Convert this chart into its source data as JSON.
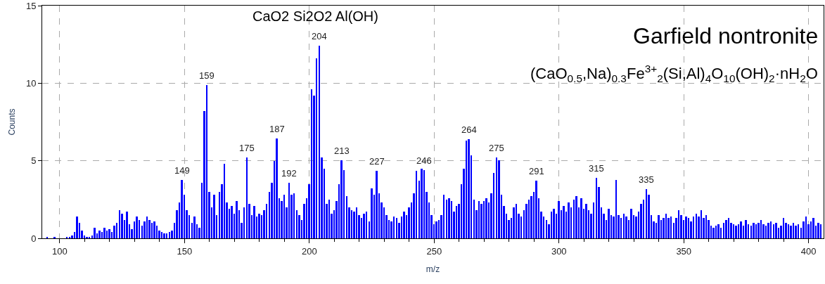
{
  "chart_data": {
    "type": "bar",
    "title": "Garfield nontronite",
    "subtitle": "(CaO$_{0.5}$,Na)$_{0.3}$Fe$^{3+}$$_{2}$(Si,Al)$_{4}$O$_{10}$(OH)$_{2}$·nH$_{2}$O",
    "xlabel": "m/z",
    "ylabel": "Counts",
    "x": [
      95,
      98,
      103,
      104,
      105,
      106,
      107,
      108,
      109,
      110,
      111,
      112,
      113,
      114,
      115,
      116,
      117,
      118,
      119,
      120,
      121,
      122,
      123,
      124,
      125,
      126,
      127,
      128,
      129,
      130,
      131,
      132,
      133,
      134,
      135,
      136,
      137,
      138,
      139,
      140,
      141,
      142,
      143,
      144,
      145,
      146,
      147,
      148,
      149,
      150,
      151,
      152,
      153,
      154,
      155,
      156,
      157,
      158,
      159,
      160,
      161,
      162,
      163,
      164,
      165,
      166,
      167,
      168,
      169,
      170,
      171,
      172,
      173,
      174,
      175,
      176,
      177,
      178,
      179,
      180,
      181,
      182,
      183,
      184,
      185,
      186,
      187,
      188,
      189,
      190,
      191,
      192,
      193,
      194,
      195,
      196,
      197,
      198,
      199,
      200,
      201,
      202,
      203,
      204,
      205,
      206,
      207,
      208,
      209,
      210,
      211,
      212,
      213,
      214,
      215,
      216,
      217,
      218,
      219,
      220,
      221,
      222,
      223,
      224,
      225,
      226,
      227,
      228,
      229,
      230,
      231,
      232,
      233,
      234,
      235,
      236,
      237,
      238,
      239,
      240,
      241,
      242,
      243,
      244,
      245,
      246,
      247,
      248,
      249,
      250,
      251,
      252,
      253,
      254,
      255,
      256,
      257,
      258,
      259,
      260,
      261,
      262,
      263,
      264,
      265,
      266,
      267,
      268,
      269,
      270,
      271,
      272,
      273,
      274,
      275,
      276,
      277,
      278,
      279,
      280,
      281,
      282,
      283,
      284,
      285,
      286,
      287,
      288,
      289,
      290,
      291,
      292,
      293,
      294,
      295,
      296,
      297,
      298,
      299,
      300,
      301,
      302,
      303,
      304,
      305,
      306,
      307,
      308,
      309,
      310,
      311,
      312,
      313,
      314,
      315,
      316,
      317,
      318,
      319,
      320,
      321,
      322,
      323,
      324,
      325,
      326,
      327,
      328,
      329,
      330,
      331,
      332,
      333,
      334,
      335,
      336,
      337,
      338,
      339,
      340,
      341,
      342,
      343,
      344,
      345,
      346,
      347,
      348,
      349,
      350,
      351,
      352,
      353,
      354,
      355,
      356,
      357,
      358,
      359,
      360,
      361,
      362,
      363,
      364,
      365,
      366,
      367,
      368,
      369,
      370,
      371,
      372,
      373,
      374,
      375,
      376,
      377,
      378,
      379,
      380,
      381,
      382,
      383,
      384,
      385,
      386,
      387,
      388,
      389,
      390,
      391,
      392,
      393,
      394,
      395,
      396,
      397,
      398,
      399,
      400,
      401,
      402,
      403,
      404,
      405
    ],
    "series": [
      {
        "color": "#0000ff",
        "values": [
          0.1,
          0.1,
          0.1,
          0.1,
          0.2,
          0.4,
          1.4,
          1.0,
          0.5,
          0.2,
          0.1,
          0.1,
          0.2,
          0.7,
          0.3,
          0.5,
          0.4,
          0.7,
          0.5,
          0.6,
          0.4,
          0.8,
          1.0,
          1.8,
          1.6,
          1.2,
          1.7,
          0.9,
          0.6,
          1.1,
          1.4,
          1.2,
          0.8,
          1.1,
          1.4,
          1.2,
          1.0,
          1.1,
          0.8,
          0.5,
          0.4,
          0.3,
          0.3,
          0.4,
          0.5,
          1.0,
          1.8,
          2.3,
          3.75,
          2.8,
          1.8,
          1.5,
          1.0,
          1.4,
          0.9,
          0.7,
          3.6,
          8.2,
          9.9,
          3.0,
          2.0,
          2.8,
          1.5,
          3.0,
          3.5,
          4.8,
          2.3,
          1.9,
          2.1,
          1.6,
          2.4,
          1.8,
          1.0,
          2.0,
          5.2,
          2.2,
          1.5,
          2.1,
          1.4,
          1.6,
          1.5,
          1.8,
          2.2,
          3.0,
          3.6,
          5.0,
          6.45,
          2.6,
          2.4,
          2.8,
          2.0,
          3.6,
          2.8,
          2.9,
          1.8,
          1.5,
          1.2,
          2.2,
          2.6,
          3.5,
          9.6,
          9.2,
          11.6,
          12.4,
          5.2,
          4.5,
          2.2,
          2.5,
          1.6,
          1.8,
          2.4,
          3.5,
          5.05,
          4.4,
          2.7,
          2.0,
          1.8,
          1.7,
          2.0,
          1.5,
          1.3,
          1.6,
          1.7,
          1.1,
          3.2,
          2.8,
          4.35,
          2.9,
          2.3,
          2.0,
          1.5,
          1.2,
          1.1,
          1.4,
          1.3,
          1.0,
          1.4,
          1.7,
          1.5,
          2.0,
          2.3,
          2.9,
          4.35,
          3.7,
          4.5,
          4.4,
          3.0,
          2.3,
          1.5,
          0.9,
          1.1,
          1.2,
          1.5,
          2.8,
          2.5,
          2.6,
          2.4,
          1.7,
          2.1,
          2.2,
          3.5,
          4.5,
          6.3,
          6.4,
          5.35,
          2.5,
          1.8,
          2.4,
          2.2,
          2.4,
          2.6,
          2.3,
          2.9,
          4.2,
          5.2,
          5.05,
          2.8,
          2.1,
          1.6,
          1.2,
          1.3,
          2.0,
          2.2,
          1.6,
          1.4,
          1.8,
          2.2,
          2.5,
          2.7,
          3.0,
          3.7,
          2.6,
          1.7,
          1.4,
          1.2,
          0.9,
          1.7,
          1.9,
          1.6,
          2.4,
          1.8,
          2.1,
          1.7,
          2.3,
          2.0,
          2.5,
          2.7,
          2.0,
          2.6,
          1.9,
          2.2,
          1.8,
          1.6,
          2.3,
          3.9,
          3.3,
          2.0,
          1.6,
          1.2,
          1.9,
          1.5,
          1.4,
          3.75,
          1.5,
          1.3,
          1.6,
          1.4,
          1.2,
          1.9,
          1.5,
          1.4,
          1.7,
          2.2,
          2.5,
          3.15,
          2.8,
          1.5,
          1.1,
          1.0,
          1.5,
          1.2,
          1.3,
          1.6,
          1.3,
          1.4,
          1.0,
          1.3,
          1.8,
          1.5,
          1.2,
          1.4,
          1.3,
          1.1,
          1.4,
          1.6,
          1.4,
          1.8,
          1.3,
          1.5,
          1.2,
          0.8,
          0.7,
          0.8,
          0.9,
          0.7,
          1.0,
          1.2,
          1.3,
          1.0,
          0.9,
          0.8,
          0.9,
          1.1,
          0.8,
          1.2,
          0.9,
          0.8,
          1.0,
          0.9,
          1.0,
          1.2,
          0.9,
          0.8,
          1.0,
          1.1,
          0.9,
          1.0,
          0.7,
          0.8,
          1.3,
          1.0,
          0.9,
          0.8,
          1.0,
          0.8,
          0.9,
          0.7,
          1.1,
          1.4,
          0.9,
          1.1,
          1.3,
          0.8,
          1.0,
          0.9
        ]
      }
    ],
    "annotations": [
      "CaO2 Si2O2 Al(OH)",
      {
        "text": "149",
        "x": 149,
        "y": 3.75
      },
      {
        "text": "159",
        "x": 159,
        "y": 9.9
      },
      {
        "text": "175",
        "x": 175,
        "y": 5.2
      },
      {
        "text": "187",
        "x": 187,
        "y": 6.45
      },
      {
        "text": "192",
        "x": 192,
        "y": 3.6
      },
      {
        "text": "204",
        "x": 204,
        "y": 12.4
      },
      {
        "text": "213",
        "x": 213,
        "y": 5.05
      },
      {
        "text": "227",
        "x": 227,
        "y": 4.35
      },
      {
        "text": "246",
        "x": 246,
        "y": 4.4
      },
      {
        "text": "264",
        "x": 264,
        "y": 6.4
      },
      {
        "text": "275",
        "x": 275,
        "y": 5.2
      },
      {
        "text": "291",
        "x": 291,
        "y": 3.7
      },
      {
        "text": "315",
        "x": 315,
        "y": 3.9
      },
      {
        "text": "335",
        "x": 335,
        "y": 3.15
      }
    ],
    "xlim": [
      93,
      406
    ],
    "xticks": [
      100,
      {
        "value": 110,
        "label": null
      },
      {
        "value": 120,
        "label": null
      },
      {
        "value": 130,
        "label": null
      },
      {
        "value": 140,
        "label": null
      },
      150,
      {
        "value": 160,
        "label": null
      },
      {
        "value": 170,
        "label": null
      },
      {
        "value": 180,
        "label": null
      },
      {
        "value": 190,
        "label": null
      },
      200,
      {
        "value": 210,
        "label": null
      },
      {
        "value": 220,
        "label": null
      },
      {
        "value": 230,
        "label": null
      },
      {
        "value": 240,
        "label": null
      },
      250,
      {
        "value": 260,
        "label": null
      },
      {
        "value": 270,
        "label": null
      },
      {
        "value": 280,
        "label": null
      },
      {
        "value": 290,
        "label": null
      },
      300,
      {
        "value": 310,
        "label": null
      },
      {
        "value": 320,
        "label": null
      },
      {
        "value": 330,
        "label": null
      },
      {
        "value": 340,
        "label": null
      },
      350,
      {
        "value": 360,
        "label": null
      },
      {
        "value": 370,
        "label": null
      },
      {
        "value": 380,
        "label": null
      },
      {
        "value": 390,
        "label": null
      },
      400
    ],
    "ylim": [
      0,
      15
    ],
    "yticks": [
      0,
      5,
      10,
      15
    ],
    "grid": true
  }
}
